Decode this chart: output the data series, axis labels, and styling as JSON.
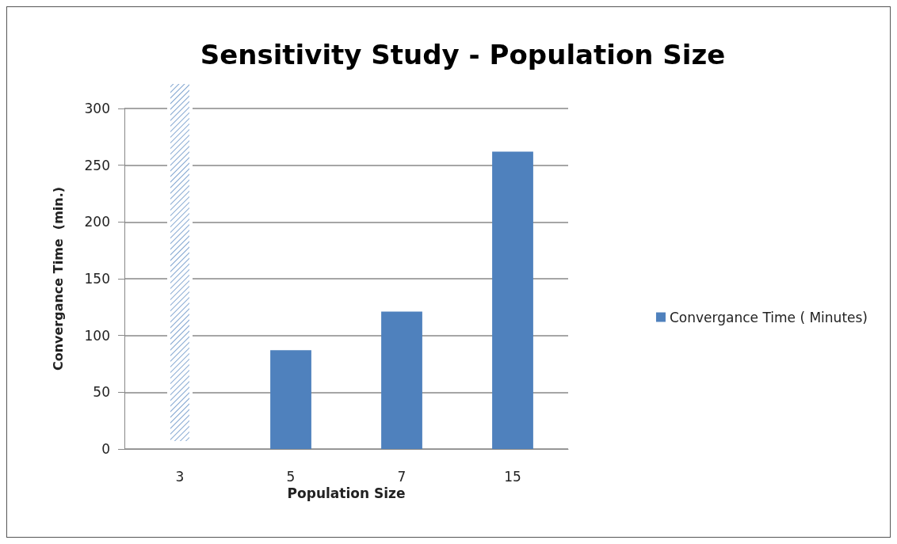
{
  "chart_data": {
    "type": "bar",
    "title": "Sensitivity Study - Population Size",
    "xlabel": "Population Size",
    "ylabel": "Convergance Time  (min.)",
    "categories": [
      "3",
      "5",
      "7",
      "15"
    ],
    "series": [
      {
        "name": "Convergance Time ( Minutes)",
        "color": "#4f81bd",
        "values": [
          null,
          87,
          121,
          262
        ]
      }
    ],
    "ylim": [
      0,
      300
    ],
    "yticks": [
      0,
      50,
      100,
      150,
      200,
      250,
      300
    ],
    "grid": "y",
    "legend": "right"
  }
}
